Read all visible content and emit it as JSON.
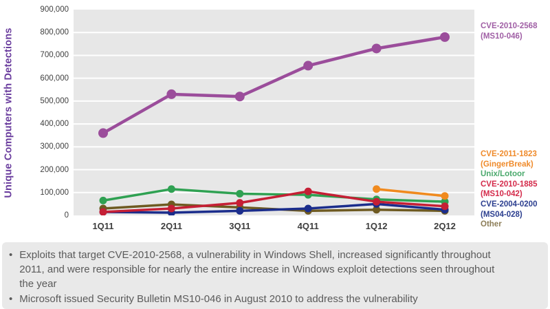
{
  "chart_data": {
    "type": "line",
    "title": "",
    "xlabel": "",
    "ylabel": "Unique Computers with Detections",
    "categories": [
      "1Q11",
      "2Q11",
      "3Q11",
      "4Q11",
      "1Q12",
      "2Q12"
    ],
    "ylim": [
      0,
      900000
    ],
    "ytick_interval": 100000,
    "ytick_labels": [
      "0",
      "100,000",
      "200,000",
      "300,000",
      "400,000",
      "500,000",
      "600,000",
      "700,000",
      "800,000",
      "900,000"
    ],
    "grid": "horizontal-white-on-gray",
    "legend_position": "right",
    "series": [
      {
        "name": "CVE-2010-2568 (MS10-046)",
        "color": "#9b4d9b",
        "values": [
          360000,
          530000,
          520000,
          655000,
          730000,
          780000
        ]
      },
      {
        "name": "CVE-2011-1823 (GingerBreak)",
        "color": "#f08a1e",
        "values": [
          null,
          null,
          null,
          null,
          115000,
          85000
        ]
      },
      {
        "name": "Unix/Lotoor",
        "color": "#2fa152",
        "values": [
          65000,
          115000,
          95000,
          90000,
          70000,
          60000
        ]
      },
      {
        "name": "CVE-2010-1885 (MS10-042)",
        "color": "#c51f35",
        "values": [
          15000,
          30000,
          55000,
          105000,
          60000,
          40000
        ]
      },
      {
        "name": "CVE-2004-0200 (MS04-028)",
        "color": "#1b2d8c",
        "values": [
          15000,
          12000,
          20000,
          30000,
          50000,
          25000
        ]
      },
      {
        "name": "Other",
        "color": "#6e5a21",
        "values": [
          30000,
          48000,
          35000,
          20000,
          25000,
          20000
        ]
      }
    ]
  },
  "legend": {
    "top": {
      "color": "#a05fa5",
      "lines": [
        "CVE-2010-2568",
        "(MS10-046)"
      ]
    },
    "bottom": [
      {
        "text": "CVE-2011-1823",
        "color": "#ef8a2a"
      },
      {
        "text": "(GingerBreak)",
        "color": "#ef8a2a"
      },
      {
        "text": "Unix/Lotoor",
        "color": "#4aa96c"
      },
      {
        "text": "CVE-2010-1885",
        "color": "#d42a4a"
      },
      {
        "text": "(MS10-042)",
        "color": "#d42a4a"
      },
      {
        "text": "CVE-2004-0200",
        "color": "#2b3e8f"
      },
      {
        "text": "(MS04-028)",
        "color": "#2b3e8f"
      },
      {
        "text": "Other",
        "color": "#8c7d57"
      }
    ]
  },
  "notes": {
    "bullet_glyph": "•",
    "bullets": [
      "Exploits that target CVE-2010-2568,  a vulnerability in Windows Shell, increased significantly throughout 2011, and were responsible for nearly the entire increase in Windows exploit detections seen throughout the year",
      "Microsoft issued Security Bulletin MS10-046 in August 2010 to address the vulnerability"
    ]
  },
  "colors": {
    "plot_background": "#e7e7e7",
    "gridline": "#ffffff",
    "axis_text": "#3f3f3f",
    "ylabel_text": "#6a3d9e",
    "notes_background": "#e9e9e9",
    "notes_text": "#5a5a5a"
  }
}
